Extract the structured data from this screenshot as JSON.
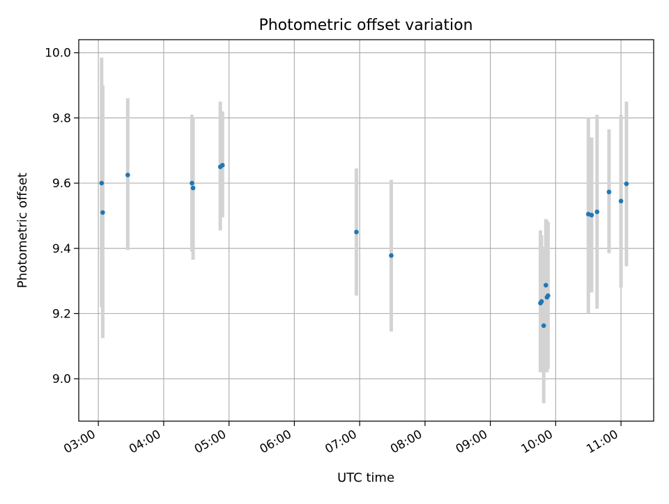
{
  "chart_data": {
    "type": "scatter",
    "title": "Photometric offset variation",
    "xlabel": "UTC time",
    "ylabel": "Photometric offset",
    "xlim": [
      "02:42",
      "11:30"
    ],
    "ylim": [
      8.87,
      10.04
    ],
    "grid": true,
    "x_ticks": [
      "03:00",
      "04:00",
      "05:00",
      "06:00",
      "07:00",
      "08:00",
      "09:00",
      "10:00",
      "11:00"
    ],
    "y_ticks": [
      "9.0",
      "9.2",
      "9.4",
      "9.6",
      "9.8",
      "10.0"
    ],
    "colors": {
      "point": "#1f77b4",
      "errorbar": "#d3d3d3",
      "grid": "#b0b0b0"
    },
    "series": [
      {
        "points": [
          {
            "x": "03:03",
            "y": 9.6,
            "err_low": 9.22,
            "err_high": 9.985
          },
          {
            "x": "03:04",
            "y": 9.51,
            "err_low": 9.125,
            "err_high": 9.9
          },
          {
            "x": "03:27",
            "y": 9.625,
            "err_low": 9.395,
            "err_high": 9.86
          },
          {
            "x": "04:26",
            "y": 9.6,
            "err_low": 9.39,
            "err_high": 9.81
          },
          {
            "x": "04:27",
            "y": 9.585,
            "err_low": 9.365,
            "err_high": 9.8
          },
          {
            "x": "04:52",
            "y": 9.65,
            "err_low": 9.455,
            "err_high": 9.85
          },
          {
            "x": "04:54",
            "y": 9.655,
            "err_low": 9.495,
            "err_high": 9.82
          },
          {
            "x": "06:57",
            "y": 9.45,
            "err_low": 9.255,
            "err_high": 9.645
          },
          {
            "x": "07:29",
            "y": 9.378,
            "err_low": 9.145,
            "err_high": 9.61
          },
          {
            "x": "09:46",
            "y": 9.232,
            "err_low": 9.02,
            "err_high": 9.455
          },
          {
            "x": "09:47",
            "y": 9.237,
            "err_low": 9.03,
            "err_high": 9.44
          },
          {
            "x": "09:49",
            "y": 9.163,
            "err_low": 8.925,
            "err_high": 9.405
          },
          {
            "x": "09:51",
            "y": 9.287,
            "err_low": 9.08,
            "err_high": 9.49
          },
          {
            "x": "09:52",
            "y": 9.25,
            "err_low": 9.02,
            "err_high": 9.485
          },
          {
            "x": "09:53",
            "y": 9.255,
            "err_low": 9.03,
            "err_high": 9.48
          },
          {
            "x": "10:30",
            "y": 9.505,
            "err_low": 9.2,
            "err_high": 9.8
          },
          {
            "x": "10:33",
            "y": 9.502,
            "err_low": 9.265,
            "err_high": 9.74
          },
          {
            "x": "10:38",
            "y": 9.512,
            "err_low": 9.215,
            "err_high": 9.81
          },
          {
            "x": "10:49",
            "y": 9.573,
            "err_low": 9.385,
            "err_high": 9.765
          },
          {
            "x": "11:00",
            "y": 9.545,
            "err_low": 9.28,
            "err_high": 9.81
          },
          {
            "x": "11:05",
            "y": 9.598,
            "err_low": 9.345,
            "err_high": 9.85
          }
        ]
      }
    ]
  }
}
